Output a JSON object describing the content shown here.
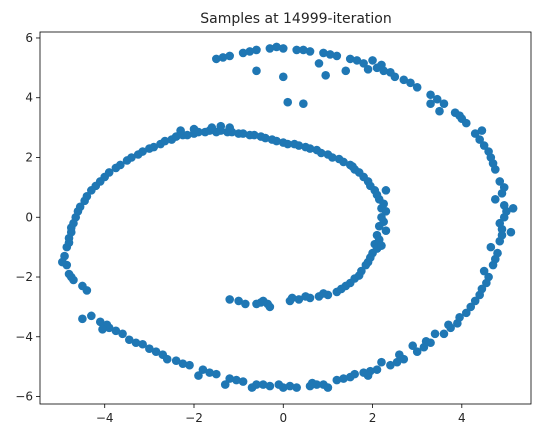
{
  "chart_data": {
    "type": "scatter",
    "title": "Samples at 14999-iteration",
    "xlabel": "",
    "ylabel": "",
    "xlim": [
      -5.45,
      5.55
    ],
    "ylim": [
      -6.25,
      6.2
    ],
    "xticks": [
      -4,
      -2,
      0,
      2,
      4
    ],
    "yticks": [
      -6,
      -4,
      -2,
      0,
      2,
      4,
      6
    ],
    "xtick_labels": [
      "−4",
      "−2",
      "0",
      "2",
      "4"
    ],
    "ytick_labels": [
      "−6",
      "−4",
      "−2",
      "0",
      "2",
      "4",
      "6"
    ],
    "grid": false,
    "legend": "none",
    "marker_color": "#1f77b4",
    "series": [
      {
        "points": [
          [
            -1.0,
            -2.8
          ],
          [
            -0.85,
            -2.9
          ],
          [
            -0.5,
            -2.85
          ],
          [
            -0.35,
            -2.9
          ],
          [
            -0.6,
            -2.9
          ],
          [
            -1.2,
            -2.75
          ],
          [
            -0.3,
            -3.0
          ],
          [
            -0.45,
            -2.8
          ],
          [
            0.2,
            -2.7
          ],
          [
            0.35,
            -2.75
          ],
          [
            0.6,
            -2.7
          ],
          [
            0.8,
            -2.65
          ],
          [
            1.0,
            -2.6
          ],
          [
            1.2,
            -2.5
          ],
          [
            1.4,
            -2.3
          ],
          [
            1.6,
            -2.05
          ],
          [
            1.75,
            -1.8
          ],
          [
            1.9,
            -1.5
          ],
          [
            2.0,
            -1.2
          ],
          [
            2.05,
            -0.9
          ],
          [
            2.1,
            -0.6
          ],
          [
            2.15,
            -0.3
          ],
          [
            2.2,
            0.0
          ],
          [
            2.2,
            0.3
          ],
          [
            2.15,
            0.6
          ],
          [
            2.05,
            0.9
          ],
          [
            1.9,
            1.2
          ],
          [
            1.7,
            1.5
          ],
          [
            1.5,
            1.75
          ],
          [
            1.25,
            1.95
          ],
          [
            1.0,
            2.1
          ],
          [
            0.75,
            2.25
          ],
          [
            0.5,
            2.35
          ],
          [
            0.25,
            2.45
          ],
          [
            0.0,
            2.5
          ],
          [
            -0.25,
            2.6
          ],
          [
            -0.5,
            2.7
          ],
          [
            -0.75,
            2.75
          ],
          [
            -1.0,
            2.8
          ],
          [
            -1.25,
            2.85
          ],
          [
            -1.5,
            2.85
          ],
          [
            -1.75,
            2.85
          ],
          [
            -2.0,
            2.8
          ],
          [
            -2.25,
            2.75
          ],
          [
            -2.5,
            2.6
          ],
          [
            -2.75,
            2.45
          ],
          [
            -3.0,
            2.3
          ],
          [
            -3.25,
            2.1
          ],
          [
            -3.5,
            1.9
          ],
          [
            -3.75,
            1.65
          ],
          [
            -4.0,
            1.35
          ],
          [
            -4.2,
            1.05
          ],
          [
            -4.4,
            0.7
          ],
          [
            -4.55,
            0.35
          ],
          [
            -4.65,
            0.0
          ],
          [
            -4.75,
            -0.35
          ],
          [
            -4.8,
            -0.7
          ],
          [
            -4.85,
            -1.0
          ],
          [
            -4.9,
            -1.3
          ],
          [
            -4.85,
            -1.6
          ],
          [
            -4.8,
            -1.9
          ],
          [
            -4.7,
            -2.1
          ],
          [
            -4.5,
            -2.3
          ],
          [
            -4.4,
            -2.45
          ],
          [
            0.15,
            -2.8
          ],
          [
            0.5,
            -2.65
          ],
          [
            0.9,
            -2.55
          ],
          [
            1.3,
            -2.4
          ],
          [
            1.5,
            -2.2
          ],
          [
            1.85,
            -1.6
          ],
          [
            1.95,
            -1.35
          ],
          [
            2.1,
            -1.05
          ],
          [
            2.15,
            -0.75
          ],
          [
            2.25,
            -0.15
          ],
          [
            2.25,
            0.45
          ],
          [
            2.1,
            0.75
          ],
          [
            1.95,
            1.05
          ],
          [
            1.8,
            1.35
          ],
          [
            1.6,
            1.6
          ],
          [
            1.35,
            1.85
          ],
          [
            1.1,
            2.0
          ],
          [
            0.85,
            2.15
          ],
          [
            0.6,
            2.3
          ],
          [
            0.35,
            2.4
          ],
          [
            0.1,
            2.45
          ],
          [
            -0.15,
            2.55
          ],
          [
            -0.4,
            2.65
          ],
          [
            -0.65,
            2.75
          ],
          [
            -0.9,
            2.8
          ],
          [
            -1.15,
            2.85
          ],
          [
            -1.4,
            2.9
          ],
          [
            -1.65,
            2.9
          ],
          [
            -1.9,
            2.85
          ],
          [
            -2.15,
            2.75
          ],
          [
            -2.4,
            2.7
          ],
          [
            -2.65,
            2.55
          ],
          [
            -2.9,
            2.35
          ],
          [
            -3.15,
            2.2
          ],
          [
            -3.4,
            2.0
          ],
          [
            -3.65,
            1.75
          ],
          [
            -3.9,
            1.5
          ],
          [
            -4.1,
            1.2
          ],
          [
            -4.3,
            0.9
          ],
          [
            -4.45,
            0.55
          ],
          [
            -4.6,
            0.2
          ],
          [
            -4.7,
            -0.2
          ],
          [
            -4.75,
            -0.5
          ],
          [
            -4.8,
            -0.85
          ],
          [
            -4.95,
            -1.5
          ],
          [
            -4.75,
            -2.0
          ],
          [
            2.3,
            0.2
          ],
          [
            2.3,
            -0.45
          ],
          [
            2.2,
            -0.95
          ],
          [
            2.3,
            0.9
          ],
          [
            1.7,
            -1.95
          ],
          [
            1.55,
            1.7
          ],
          [
            -1.4,
            3.05
          ],
          [
            -1.2,
            3.0
          ],
          [
            -1.6,
            3.0
          ],
          [
            -2.3,
            2.9
          ],
          [
            -2.0,
            2.95
          ],
          [
            -4.3,
            -3.3
          ],
          [
            -4.1,
            -3.5
          ],
          [
            -3.9,
            -3.7
          ],
          [
            -3.6,
            -3.9
          ],
          [
            -3.3,
            -4.2
          ],
          [
            -3.0,
            -4.4
          ],
          [
            -2.7,
            -4.6
          ],
          [
            -2.4,
            -4.8
          ],
          [
            -2.1,
            -4.95
          ],
          [
            -1.8,
            -5.1
          ],
          [
            -1.5,
            -5.25
          ],
          [
            -1.2,
            -5.4
          ],
          [
            -0.9,
            -5.5
          ],
          [
            -0.6,
            -5.6
          ],
          [
            -0.3,
            -5.65
          ],
          [
            0.0,
            -5.7
          ],
          [
            0.3,
            -5.7
          ],
          [
            0.6,
            -5.65
          ],
          [
            0.9,
            -5.6
          ],
          [
            1.2,
            -5.45
          ],
          [
            1.5,
            -5.35
          ],
          [
            1.8,
            -5.2
          ],
          [
            2.1,
            -5.1
          ],
          [
            2.4,
            -4.95
          ],
          [
            2.7,
            -4.75
          ],
          [
            3.0,
            -4.5
          ],
          [
            3.3,
            -4.2
          ],
          [
            3.6,
            -3.9
          ],
          [
            3.9,
            -3.55
          ],
          [
            4.1,
            -3.2
          ],
          [
            4.3,
            -2.8
          ],
          [
            4.45,
            -2.4
          ],
          [
            4.6,
            -2.0
          ],
          [
            4.7,
            -1.6
          ],
          [
            4.8,
            -1.2
          ],
          [
            4.85,
            -0.8
          ],
          [
            4.9,
            -0.4
          ],
          [
            4.95,
            0.0
          ],
          [
            4.95,
            0.4
          ],
          [
            4.9,
            0.8
          ],
          [
            4.85,
            1.2
          ],
          [
            4.75,
            1.6
          ],
          [
            4.65,
            2.0
          ],
          [
            4.5,
            2.4
          ],
          [
            4.3,
            2.8
          ],
          [
            4.1,
            3.15
          ],
          [
            3.85,
            3.5
          ],
          [
            3.6,
            3.8
          ],
          [
            3.3,
            4.1
          ],
          [
            3.0,
            4.35
          ],
          [
            2.7,
            4.6
          ],
          [
            2.4,
            4.85
          ],
          [
            2.1,
            5.0
          ],
          [
            1.8,
            5.15
          ],
          [
            1.5,
            5.3
          ],
          [
            1.2,
            5.4
          ],
          [
            0.9,
            5.5
          ],
          [
            0.6,
            5.55
          ],
          [
            0.3,
            5.6
          ],
          [
            0.0,
            5.65
          ],
          [
            -0.3,
            5.65
          ],
          [
            -0.6,
            5.6
          ],
          [
            -0.9,
            5.5
          ],
          [
            -1.2,
            5.4
          ],
          [
            -1.5,
            5.3
          ],
          [
            -3.45,
            -4.1
          ],
          [
            -3.75,
            -3.8
          ],
          [
            -2.85,
            -4.5
          ],
          [
            -2.25,
            -4.9
          ],
          [
            -1.65,
            -5.2
          ],
          [
            -1.05,
            -5.45
          ],
          [
            -0.45,
            -5.6
          ],
          [
            0.15,
            -5.65
          ],
          [
            0.75,
            -5.6
          ],
          [
            1.35,
            -5.4
          ],
          [
            1.95,
            -5.15
          ],
          [
            2.55,
            -4.85
          ],
          [
            3.15,
            -4.35
          ],
          [
            3.75,
            -3.7
          ],
          [
            4.2,
            -3.0
          ],
          [
            4.55,
            -2.2
          ],
          [
            4.75,
            -1.4
          ],
          [
            4.9,
            -0.6
          ],
          [
            5.0,
            0.2
          ],
          [
            4.95,
            1.0
          ],
          [
            4.7,
            1.8
          ],
          [
            4.4,
            2.6
          ],
          [
            4.0,
            3.3
          ],
          [
            3.45,
            3.95
          ],
          [
            2.85,
            4.5
          ],
          [
            2.25,
            4.9
          ],
          [
            1.65,
            5.25
          ],
          [
            1.05,
            5.45
          ],
          [
            0.45,
            5.6
          ],
          [
            -0.15,
            5.7
          ],
          [
            -0.75,
            5.55
          ],
          [
            -1.35,
            5.35
          ],
          [
            -0.6,
            4.9
          ],
          [
            0.0,
            4.7
          ],
          [
            0.1,
            3.85
          ],
          [
            0.45,
            3.8
          ],
          [
            0.8,
            5.15
          ],
          [
            0.95,
            4.75
          ],
          [
            1.4,
            4.9
          ],
          [
            1.9,
            4.95
          ],
          [
            2.0,
            5.25
          ],
          [
            2.2,
            5.1
          ],
          [
            2.5,
            4.7
          ],
          [
            3.3,
            3.8
          ],
          [
            3.5,
            3.55
          ],
          [
            3.95,
            3.4
          ],
          [
            4.6,
            2.2
          ],
          [
            4.45,
            2.9
          ],
          [
            4.75,
            0.6
          ],
          [
            4.85,
            -0.2
          ],
          [
            5.1,
            -0.5
          ],
          [
            5.15,
            0.3
          ],
          [
            4.65,
            -1.0
          ],
          [
            4.5,
            -1.8
          ],
          [
            4.4,
            -2.6
          ],
          [
            3.95,
            -3.35
          ],
          [
            3.7,
            -3.6
          ],
          [
            3.4,
            -3.9
          ],
          [
            3.2,
            -4.15
          ],
          [
            2.9,
            -4.3
          ],
          [
            2.6,
            -4.6
          ],
          [
            2.2,
            -4.85
          ],
          [
            1.9,
            -5.3
          ],
          [
            1.6,
            -5.25
          ],
          [
            1.0,
            -5.7
          ],
          [
            0.65,
            -5.55
          ],
          [
            -0.1,
            -5.6
          ],
          [
            -0.7,
            -5.7
          ],
          [
            -1.3,
            -5.6
          ],
          [
            -1.9,
            -5.3
          ],
          [
            -2.6,
            -4.75
          ],
          [
            -3.15,
            -4.25
          ],
          [
            -3.95,
            -3.6
          ],
          [
            -4.5,
            -3.4
          ],
          [
            -4.05,
            -3.75
          ]
        ]
      }
    ]
  }
}
